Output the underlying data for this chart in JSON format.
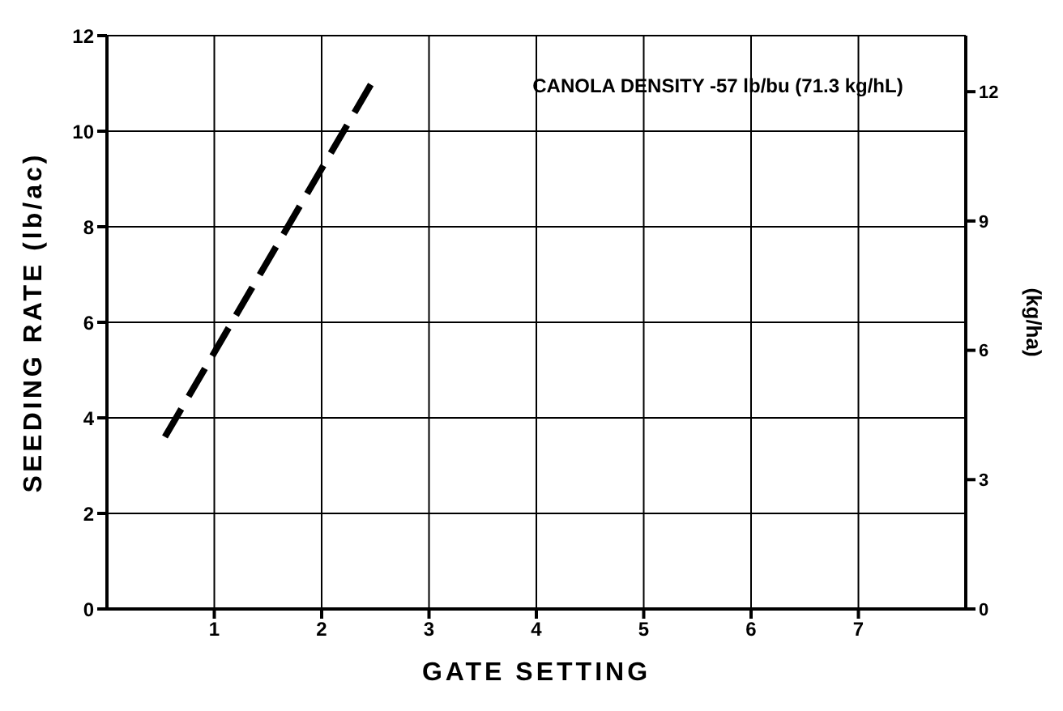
{
  "chart_data": {
    "type": "line",
    "xlabel": "GATE SETTING",
    "ylabel": "SEEDING RATE (lb/ac)",
    "y2label": "(kg/ha)",
    "annotations": [
      "CANOLA DENSITY -57 lb/bu (71.3 kg/hL)"
    ],
    "x": [
      0.54,
      2.49
    ],
    "series": [
      {
        "color": "#000000",
        "values": [
          3.6,
          11.1
        ]
      }
    ],
    "xlim": [
      0,
      8
    ],
    "xticks": [
      1,
      2,
      3,
      4,
      5,
      6,
      7
    ],
    "ylim": [
      0,
      12
    ],
    "yticks": [
      0,
      2,
      4,
      6,
      8,
      10,
      12
    ],
    "y2lim": [
      0,
      13.3
    ],
    "y2ticks": [
      0,
      3,
      6,
      9,
      12
    ],
    "grid": true,
    "line_style": "dashed",
    "marker": "none",
    "legend": false
  }
}
